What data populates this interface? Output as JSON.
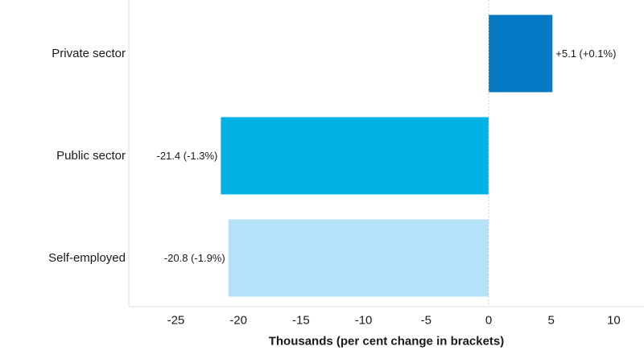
{
  "chart_data": {
    "type": "bar",
    "orientation": "horizontal",
    "categories": [
      "Private sector",
      "Public sector",
      "Self-employed"
    ],
    "values": [
      5.1,
      -21.4,
      -20.8
    ],
    "data_labels": [
      "+5.1 (+0.1%)",
      "-21.4 (-1.3%)",
      "-20.8 (-1.9%)"
    ],
    "colors": [
      "#0579c3",
      "#00b1e3",
      "#b5e2f9"
    ],
    "title": "",
    "xlabel": "Thousands (per cent change in brackets)",
    "ylabel": "",
    "xlim": [
      -28,
      12
    ],
    "xticks": [
      -25,
      -20,
      -15,
      -10,
      -5,
      0,
      5,
      10
    ],
    "xtick_labels": [
      "-25",
      "-20",
      "-15",
      "-10",
      "-5",
      "0",
      "5",
      "10"
    ],
    "grid": false,
    "legend": "none"
  }
}
